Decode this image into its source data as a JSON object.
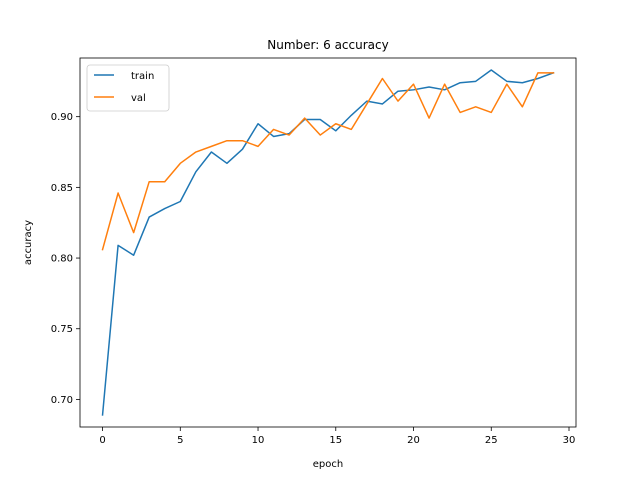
{
  "chart_data": {
    "type": "line",
    "title": "Number: 6 accuracy",
    "xlabel": "epoch",
    "ylabel": "accuracy",
    "xlim": [
      -1.45,
      30.45
    ],
    "ylim": [
      0.6805,
      0.9415
    ],
    "xticks": [
      0,
      5,
      10,
      15,
      20,
      25,
      30
    ],
    "yticks": [
      0.7,
      0.75,
      0.8,
      0.85,
      0.9
    ],
    "ytick_labels": [
      "0.70",
      "0.75",
      "0.80",
      "0.85",
      "0.90"
    ],
    "grid": false,
    "legend": "top-left",
    "x": [
      0,
      1,
      2,
      3,
      4,
      5,
      6,
      7,
      8,
      9,
      10,
      11,
      12,
      13,
      14,
      15,
      16,
      17,
      18,
      19,
      20,
      21,
      22,
      23,
      24,
      25,
      26,
      27,
      28,
      29
    ],
    "series": [
      {
        "name": "train",
        "color": "#1f77b4",
        "values": [
          0.689,
          0.809,
          0.802,
          0.829,
          0.835,
          0.84,
          0.861,
          0.875,
          0.867,
          0.877,
          0.895,
          0.886,
          0.888,
          0.898,
          0.898,
          0.89,
          0.901,
          0.911,
          0.909,
          0.918,
          0.919,
          0.921,
          0.919,
          0.924,
          0.925,
          0.933,
          0.925,
          0.924,
          0.927,
          0.931
        ]
      },
      {
        "name": "val",
        "color": "#ff7f0e",
        "values": [
          0.806,
          0.846,
          0.818,
          0.854,
          0.854,
          0.867,
          0.875,
          0.879,
          0.883,
          0.883,
          0.879,
          0.891,
          0.887,
          0.899,
          0.887,
          0.895,
          0.891,
          0.909,
          0.927,
          0.911,
          0.923,
          0.899,
          0.923,
          0.903,
          0.907,
          0.903,
          0.923,
          0.907,
          0.931,
          0.931
        ]
      }
    ]
  }
}
